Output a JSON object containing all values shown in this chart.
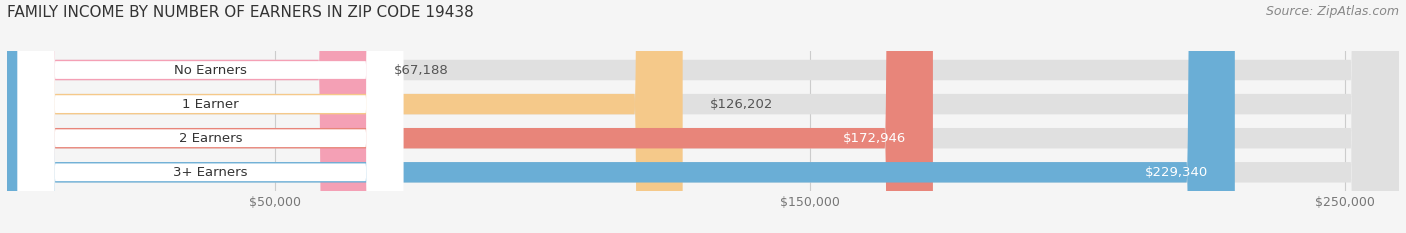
{
  "title": "FAMILY INCOME BY NUMBER OF EARNERS IN ZIP CODE 19438",
  "source": "Source: ZipAtlas.com",
  "categories": [
    "No Earners",
    "1 Earner",
    "2 Earners",
    "3+ Earners"
  ],
  "values": [
    67188,
    126202,
    172946,
    229340
  ],
  "value_labels": [
    "$67,188",
    "$126,202",
    "$172,946",
    "$229,340"
  ],
  "bar_colors": [
    "#f4a0b5",
    "#f5c98a",
    "#e8857a",
    "#6aaed6"
  ],
  "bar_label_colors": [
    "#555555",
    "#555555",
    "#ffffff",
    "#ffffff"
  ],
  "xlim": [
    0,
    260000
  ],
  "xticks": [
    50000,
    150000,
    250000
  ],
  "xticklabels": [
    "$50,000",
    "$150,000",
    "$250,000"
  ],
  "background_color": "#f5f5f5",
  "bar_background_color": "#e0e0e0",
  "title_fontsize": 11,
  "source_fontsize": 9,
  "label_fontsize": 9.5,
  "tick_fontsize": 9
}
